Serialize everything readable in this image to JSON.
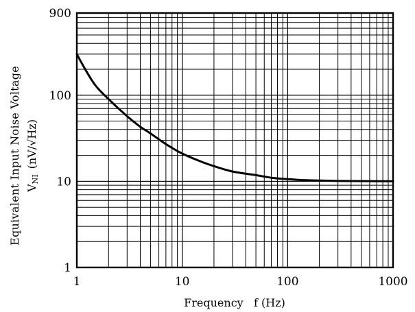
{
  "chart_data": {
    "type": "line",
    "title": "",
    "xlabel": "Frequency   f (Hz)",
    "ylabel_line1": "Equivalent Input Noise Voltage",
    "ylabel_line2_symbol": "V",
    "ylabel_line2_subscript": "NI",
    "ylabel_line2_units": "(nV/√Hz)",
    "x_scale": "log",
    "y_scale": "log",
    "xlim": [
      1,
      1000
    ],
    "ylim": [
      1,
      900
    ],
    "x_ticks": [
      1,
      10,
      100,
      1000
    ],
    "x_tick_labels": [
      "1",
      "10",
      "100",
      "1000"
    ],
    "y_ticks": [
      1,
      10,
      100,
      900
    ],
    "y_tick_labels": [
      "1",
      "10",
      "100",
      "900"
    ],
    "grid": true,
    "series": [
      {
        "x": [
          1,
          1.2,
          1.5,
          2,
          3,
          4,
          5,
          7,
          10,
          15,
          20,
          30,
          50,
          70,
          100,
          150,
          200,
          300,
          500,
          1000
        ],
        "y": [
          300,
          200,
          130,
          90,
          57,
          43,
          36,
          27,
          21,
          17,
          15,
          13,
          11.8,
          11,
          10.6,
          10.3,
          10.2,
          10.1,
          10.05,
          10
        ]
      }
    ]
  }
}
